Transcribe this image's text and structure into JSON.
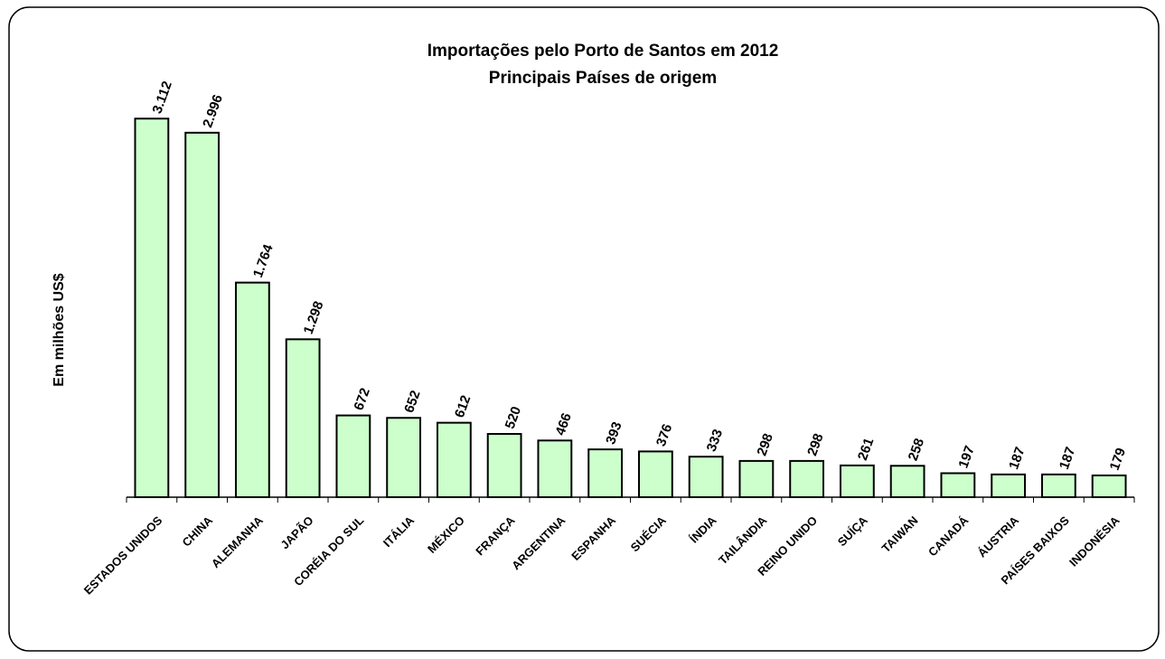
{
  "chart_data": {
    "type": "bar",
    "title": "Importações pelo Porto de Santos em 2012",
    "subtitle": "Principais Países de origem",
    "y_label": "Em  milhões  US$",
    "categories": [
      "ESTADOS UNIDOS",
      "CHINA",
      "ALEMANHA",
      "JAPÃO",
      "CORÉIA DO SUL",
      "ITÁLIA",
      "MÉXICO",
      "FRANÇA",
      "ARGENTINA",
      "ESPANHA",
      "SUÉCIA",
      "ÍNDIA",
      "TAILÂNDIA",
      "REINO UNIDO",
      "SUÍÇA",
      "TAIWAN",
      "CANADÁ",
      "ÁUSTRIA",
      "PAÍSES BAIXOS",
      "INDONÉSIA"
    ],
    "values": [
      3112,
      2996,
      1764,
      1298,
      672,
      652,
      612,
      520,
      466,
      393,
      376,
      333,
      298,
      298,
      261,
      258,
      197,
      187,
      187,
      179
    ],
    "value_labels": [
      "3.112",
      "2.996",
      "1.764",
      "1.298",
      "672",
      "652",
      "612",
      "520",
      "466",
      "393",
      "376",
      "333",
      "298",
      "298",
      "261",
      "258",
      "197",
      "187",
      "187",
      "179"
    ],
    "color": "#ccffcc",
    "ylim": [
      0,
      3500
    ]
  }
}
